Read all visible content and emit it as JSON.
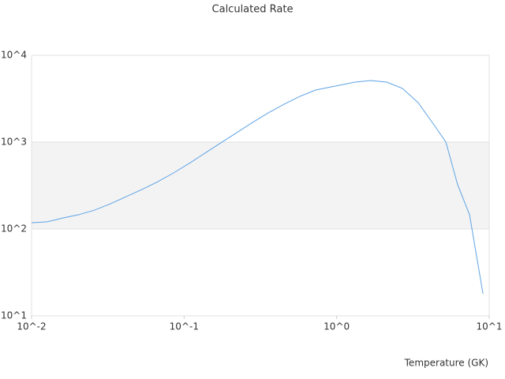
{
  "chart_data": {
    "type": "line",
    "title": "Calculated Rate",
    "x_label": "Temperature (GK)",
    "x": [
      0.01,
      0.0127,
      0.0161,
      0.0204,
      0.0259,
      0.0329,
      0.0418,
      0.053,
      0.0673,
      0.0853,
      0.108,
      0.137,
      0.174,
      0.221,
      0.281,
      0.356,
      0.452,
      0.574,
      0.728,
      0.98,
      1.32,
      1.68,
      2.13,
      2.7,
      3.42,
      4.34,
      5.2,
      6.21,
      7.43,
      9.1
    ],
    "series": [
      {
        "color": "#5ea3e6",
        "values": [
          118,
          121,
          134,
          146,
          165,
          195,
          236,
          285,
          351,
          442,
          569,
          747,
          980,
          1285,
          1687,
          2170,
          2730,
          3365,
          3980,
          4420,
          4910,
          5120,
          4910,
          4150,
          2850,
          1585,
          1000,
          323,
          146,
          18
        ]
      }
    ],
    "xlim": [
      0.01,
      10
    ],
    "ylim": [
      10,
      10000
    ],
    "xlog": true,
    "ylog": true,
    "grid": true,
    "xticks": [
      {
        "value": 0.01,
        "label": "10^-2"
      },
      {
        "value": 0.1,
        "label": "10^-1"
      },
      {
        "value": 1,
        "label": "10^0"
      },
      {
        "value": 10,
        "label": "10^1"
      }
    ],
    "yticks": [
      {
        "value": 10,
        "label": "10^1"
      },
      {
        "value": 100,
        "label": "10^2"
      },
      {
        "value": 1000,
        "label": "10^3"
      },
      {
        "value": 10000,
        "label": "10^4"
      }
    ]
  }
}
